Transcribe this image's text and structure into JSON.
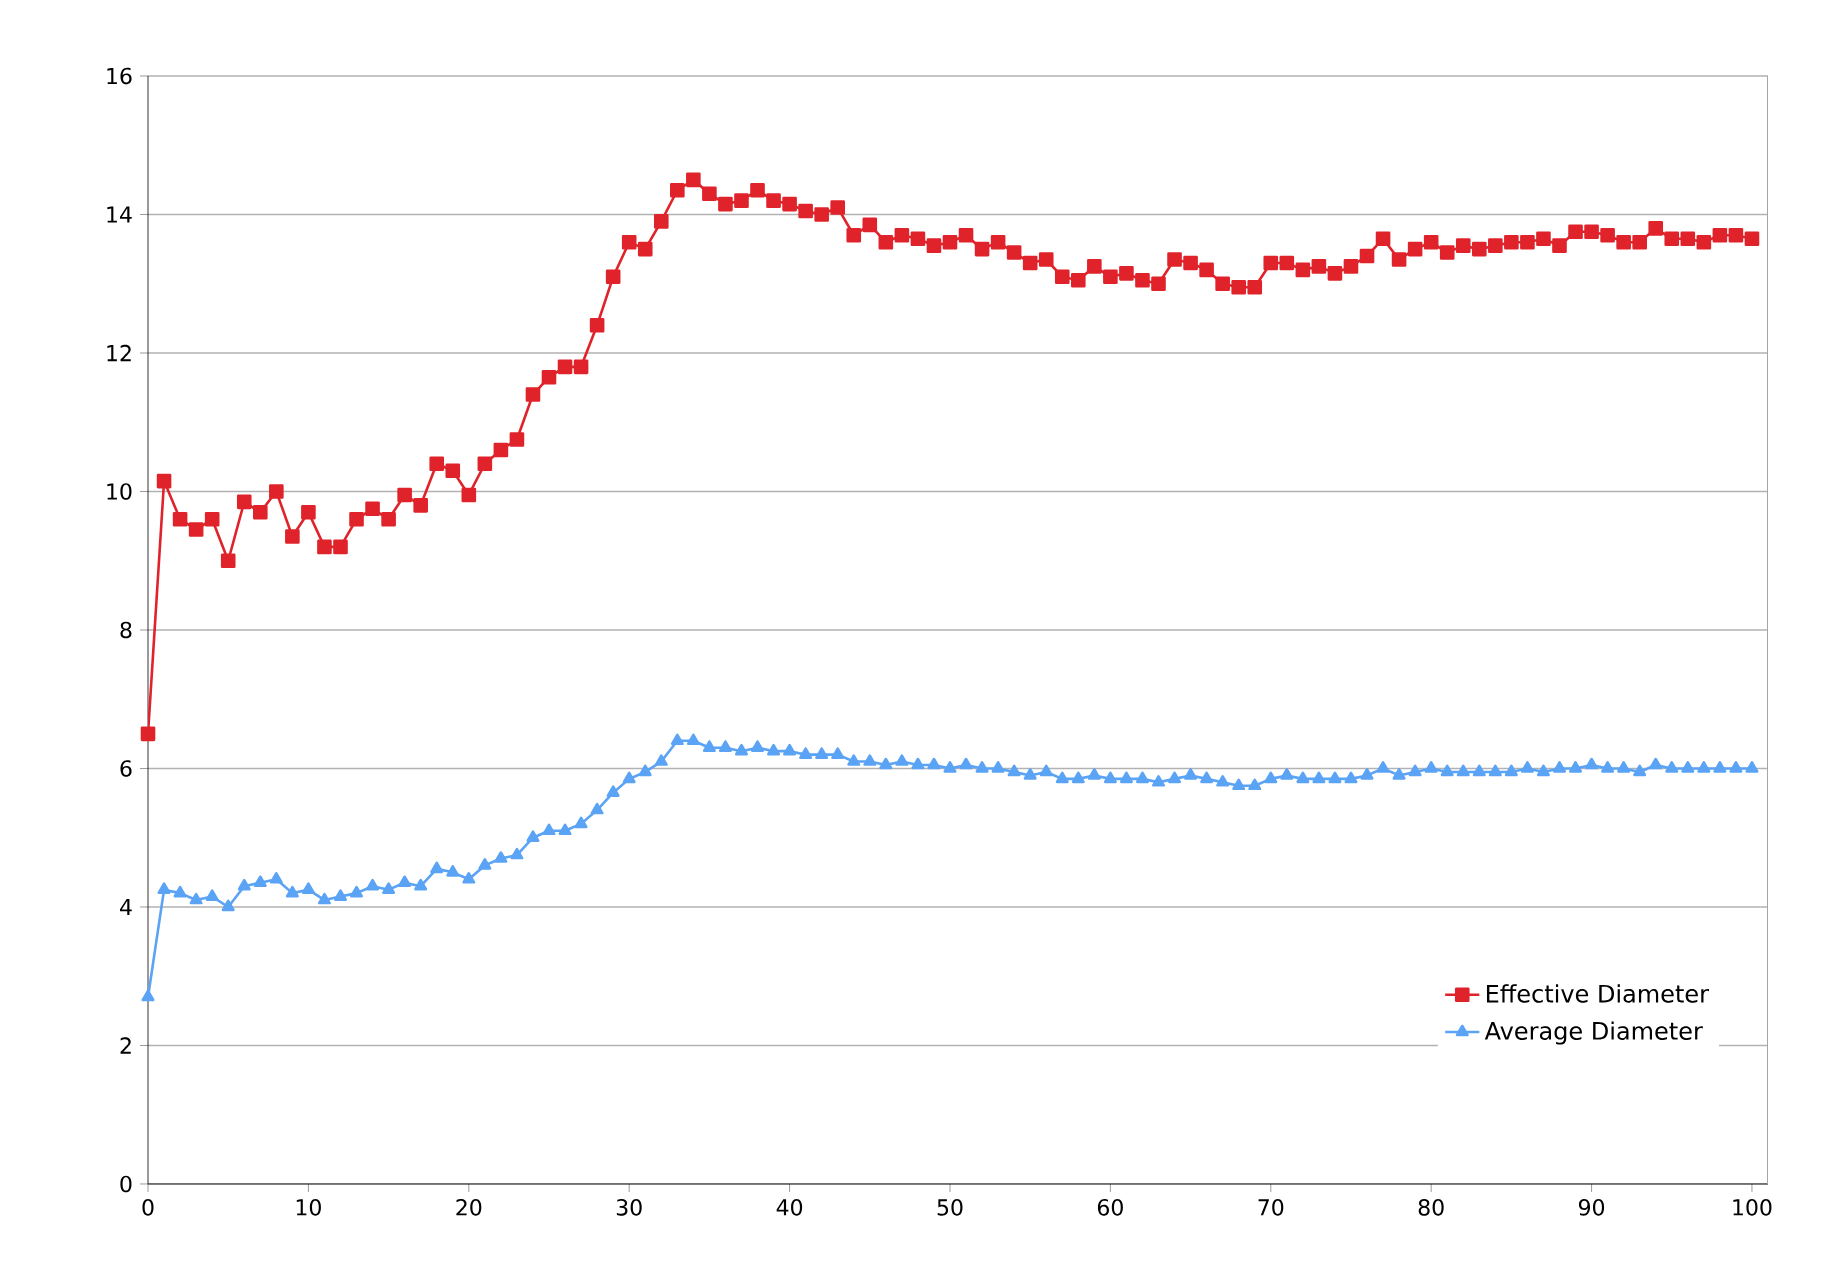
{
  "chart_data": {
    "type": "line",
    "x": [
      0,
      1,
      2,
      3,
      4,
      5,
      6,
      7,
      8,
      9,
      10,
      11,
      12,
      13,
      14,
      15,
      16,
      17,
      18,
      19,
      20,
      21,
      22,
      23,
      24,
      25,
      26,
      27,
      28,
      29,
      30,
      31,
      32,
      33,
      34,
      35,
      36,
      37,
      38,
      39,
      40,
      41,
      42,
      43,
      44,
      45,
      46,
      47,
      48,
      49,
      50,
      51,
      52,
      53,
      54,
      55,
      56,
      57,
      58,
      59,
      60,
      61,
      62,
      63,
      64,
      65,
      66,
      67,
      68,
      69,
      70,
      71,
      72,
      73,
      74,
      75,
      76,
      77,
      78,
      79,
      80,
      81,
      82,
      83,
      84,
      85,
      86,
      87,
      88,
      89,
      90,
      91,
      92,
      93,
      94,
      95,
      96,
      97,
      98,
      99,
      100
    ],
    "series": [
      {
        "name": "Effective Diameter",
        "color": "#e0232b",
        "marker": "square",
        "values": [
          6.5,
          10.15,
          9.6,
          9.45,
          9.6,
          9.0,
          9.85,
          9.7,
          10.0,
          9.35,
          9.7,
          9.2,
          9.2,
          9.6,
          9.75,
          9.6,
          9.95,
          9.8,
          10.4,
          10.3,
          9.95,
          10.4,
          10.6,
          10.75,
          11.4,
          11.65,
          11.8,
          11.8,
          12.4,
          13.1,
          13.6,
          13.5,
          13.9,
          14.35,
          14.5,
          14.3,
          14.15,
          14.2,
          14.35,
          14.2,
          14.15,
          14.05,
          14.0,
          14.1,
          13.7,
          13.85,
          13.6,
          13.7,
          13.65,
          13.55,
          13.6,
          13.7,
          13.5,
          13.6,
          13.45,
          13.3,
          13.35,
          13.1,
          13.05,
          13.25,
          13.1,
          13.15,
          13.05,
          13.0,
          13.35,
          13.3,
          13.2,
          13.0,
          12.95,
          12.95,
          13.3,
          13.3,
          13.2,
          13.25,
          13.15,
          13.25,
          13.4,
          13.65,
          13.35,
          13.5,
          13.6,
          13.45,
          13.55,
          13.5,
          13.55,
          13.6,
          13.6,
          13.65,
          13.55,
          13.75,
          13.75,
          13.7,
          13.6,
          13.6,
          13.8,
          13.65,
          13.65,
          13.6,
          13.7,
          13.7,
          13.65
        ]
      },
      {
        "name": "Average Diameter",
        "color": "#5aa3f5",
        "marker": "triangle",
        "values": [
          2.7,
          4.25,
          4.2,
          4.1,
          4.15,
          4.0,
          4.3,
          4.35,
          4.4,
          4.2,
          4.25,
          4.1,
          4.15,
          4.2,
          4.3,
          4.25,
          4.35,
          4.3,
          4.55,
          4.5,
          4.4,
          4.6,
          4.7,
          4.75,
          5.0,
          5.1,
          5.1,
          5.2,
          5.4,
          5.65,
          5.85,
          5.95,
          6.1,
          6.4,
          6.4,
          6.3,
          6.3,
          6.25,
          6.3,
          6.25,
          6.25,
          6.2,
          6.2,
          6.2,
          6.1,
          6.1,
          6.05,
          6.1,
          6.05,
          6.05,
          6.0,
          6.05,
          6.0,
          6.0,
          5.95,
          5.9,
          5.95,
          5.85,
          5.85,
          5.9,
          5.85,
          5.85,
          5.85,
          5.8,
          5.85,
          5.9,
          5.85,
          5.8,
          5.75,
          5.75,
          5.85,
          5.9,
          5.85,
          5.85,
          5.85,
          5.85,
          5.9,
          6.0,
          5.9,
          5.95,
          6.0,
          5.95,
          5.95,
          5.95,
          5.95,
          5.95,
          6.0,
          5.95,
          6.0,
          6.0,
          6.05,
          6.0,
          6.0,
          5.95,
          6.05,
          6.0,
          6.0,
          6.0,
          6.0,
          6.0,
          6.0
        ]
      }
    ],
    "xlim": [
      0,
      101
    ],
    "xticks": [
      0,
      10,
      20,
      30,
      40,
      50,
      60,
      70,
      80,
      90,
      100
    ],
    "ylim": [
      0,
      16
    ],
    "yticks": [
      0,
      2,
      4,
      6,
      8,
      10,
      12,
      14,
      16
    ],
    "grid": "y",
    "legend": "bottom right",
    "line_style": "solid"
  }
}
